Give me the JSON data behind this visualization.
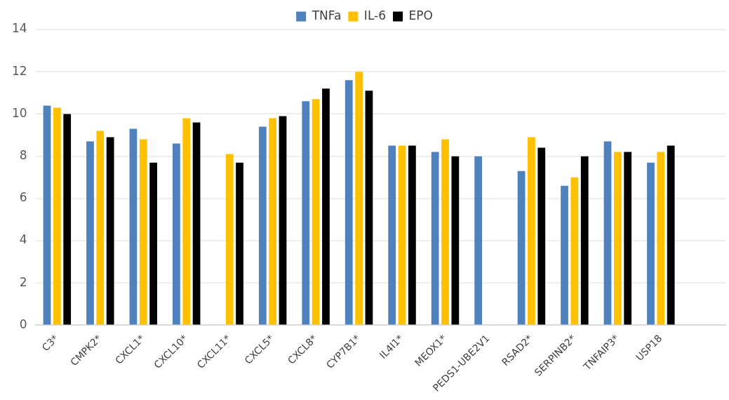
{
  "chart_data": {
    "type": "bar",
    "categories": [
      "C3*",
      "CMPK2*",
      "CXCL1*",
      "CXCL10*",
      "CXCL11*",
      "CXCL5*",
      "CXCL8*",
      "CYP7B1*",
      "IL4I1*",
      "MEOX1*",
      "PEDS1-UBE2V1",
      "RSAD2*",
      "SERPINB2*",
      "TNFAIP3*",
      "USP18",
      null
    ],
    "series": [
      {
        "name": "TNFa",
        "color": "#4f81bd",
        "values": [
          10.4,
          8.7,
          9.3,
          8.6,
          null,
          9.4,
          10.6,
          11.6,
          8.5,
          8.2,
          8.0,
          7.3,
          6.6,
          8.7,
          7.7,
          null
        ]
      },
      {
        "name": "IL-6",
        "color": "#ffc000",
        "values": [
          10.3,
          9.2,
          8.8,
          9.8,
          8.1,
          9.8,
          10.7,
          12.0,
          8.5,
          8.8,
          null,
          8.9,
          7.0,
          8.2,
          8.2,
          null
        ]
      },
      {
        "name": "EPO",
        "color": "#000000",
        "values": [
          10.0,
          8.9,
          7.7,
          9.6,
          7.7,
          9.9,
          11.2,
          11.1,
          8.5,
          8.0,
          null,
          8.4,
          8.0,
          8.2,
          8.5,
          null
        ]
      }
    ],
    "ylim": [
      0,
      14
    ],
    "yticks": [
      0,
      2,
      4,
      6,
      8,
      10,
      12,
      14
    ],
    "grid": "y",
    "legend": "top"
  }
}
